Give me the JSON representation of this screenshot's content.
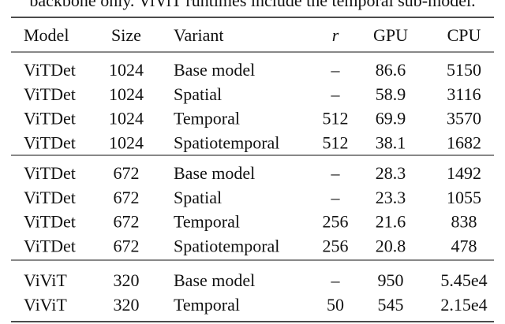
{
  "caption": "backbone only. ViViT runtimes include the temporal sub-model.",
  "table": {
    "header": [
      "Model",
      "Size",
      "Variant",
      "r",
      "GPU",
      "CPU"
    ],
    "groups": [
      [
        [
          "ViTDet",
          "1024",
          "Base model",
          "–",
          "86.6",
          "5150"
        ],
        [
          "ViTDet",
          "1024",
          "Spatial",
          "–",
          "58.9",
          "3116"
        ],
        [
          "ViTDet",
          "1024",
          "Temporal",
          "512",
          "69.9",
          "3570"
        ],
        [
          "ViTDet",
          "1024",
          "Spatiotemporal",
          "512",
          "38.1",
          "1682"
        ]
      ],
      [
        [
          "ViTDet",
          "672",
          "Base model",
          "–",
          "28.3",
          "1492"
        ],
        [
          "ViTDet",
          "672",
          "Spatial",
          "–",
          "23.3",
          "1055"
        ],
        [
          "ViTDet",
          "672",
          "Temporal",
          "256",
          "21.6",
          "838"
        ],
        [
          "ViTDet",
          "672",
          "Spatiotemporal",
          "256",
          "20.8",
          "478"
        ]
      ],
      [
        [
          "ViViT",
          "320",
          "Base model",
          "–",
          "950",
          "5.45e4"
        ],
        [
          "ViViT",
          "320",
          "Temporal",
          "50",
          "545",
          "2.15e4"
        ]
      ]
    ]
  }
}
